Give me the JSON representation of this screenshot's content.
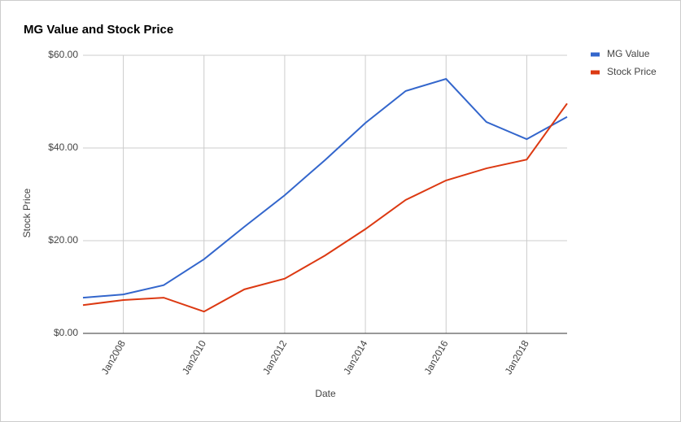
{
  "chart_data": {
    "type": "line",
    "title": "MG Value and Stock Price",
    "x_label": "Date",
    "y_label": "Stock Price",
    "x": [
      2007,
      2008,
      2009,
      2010,
      2011,
      2012,
      2013,
      2014,
      2015,
      2016,
      2017,
      2018,
      2019
    ],
    "series": [
      {
        "name": "MG Value",
        "color": "#3366cc",
        "values": [
          7.7,
          8.4,
          10.4,
          16,
          23,
          29.8,
          37.4,
          45.4,
          52.3,
          54.9,
          45.6,
          41.9,
          46.7
        ]
      },
      {
        "name": "Stock Price",
        "color": "#dc3912",
        "values": [
          6.1,
          7.2,
          7.7,
          4.7,
          9.5,
          11.8,
          16.8,
          22.5,
          28.8,
          33,
          35.6,
          37.5,
          49.6
        ]
      }
    ],
    "xlim": [
      2007,
      2019
    ],
    "xticks": [
      {
        "value": 2008,
        "label": "Jan2008"
      },
      {
        "value": 2010,
        "label": "Jan2010"
      },
      {
        "value": 2012,
        "label": "Jan2012"
      },
      {
        "value": 2014,
        "label": "Jan2014"
      },
      {
        "value": 2016,
        "label": "Jan2016"
      },
      {
        "value": 2018,
        "label": "Jan2018"
      }
    ],
    "ylim": [
      0,
      60
    ],
    "yticks": [
      {
        "value": 0,
        "label": "$0.00"
      },
      {
        "value": 20,
        "label": "$20.00"
      },
      {
        "value": 40,
        "label": "$40.00"
      },
      {
        "value": 60,
        "label": "$60.00"
      }
    ],
    "grid": true,
    "legend": "top-right"
  }
}
